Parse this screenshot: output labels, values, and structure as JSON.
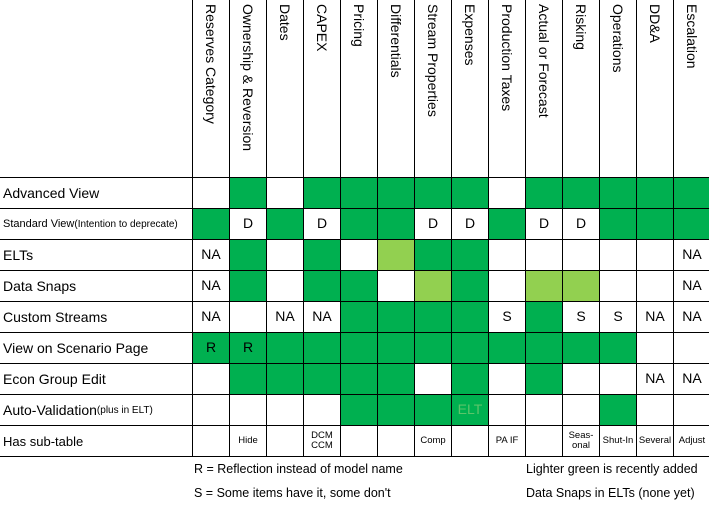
{
  "columns": [
    "Reserves Category",
    "Ownership & Reversion",
    "Dates",
    "CAPEX",
    "Pricing",
    "Differentials",
    "Stream Properties",
    "Expenses",
    "Production Taxes",
    "Actual or Forecast",
    "Risking",
    "Operations",
    "DD&A",
    "Escalation"
  ],
  "rows": [
    {
      "label": "Advanced View",
      "cells": [
        {
          "fill": "#ffffff"
        },
        {
          "fill": "#00b050"
        },
        {
          "fill": "#ffffff"
        },
        {
          "fill": "#00b050"
        },
        {
          "fill": "#00b050"
        },
        {
          "fill": "#00b050"
        },
        {
          "fill": "#00b050"
        },
        {
          "fill": "#00b050"
        },
        {
          "fill": "#ffffff"
        },
        {
          "fill": "#00b050"
        },
        {
          "fill": "#00b050"
        },
        {
          "fill": "#00b050"
        },
        {
          "fill": "#00b050"
        },
        {
          "fill": "#00b050"
        }
      ]
    },
    {
      "label": "Standard View",
      "note": "(Intention to deprecate)",
      "cells": [
        {
          "fill": "#00b050"
        },
        {
          "text": "D",
          "fill": "#ffffff"
        },
        {
          "fill": "#00b050"
        },
        {
          "text": "D",
          "fill": "#ffffff"
        },
        {
          "fill": "#00b050"
        },
        {
          "fill": "#00b050"
        },
        {
          "text": "D",
          "fill": "#ffffff"
        },
        {
          "text": "D",
          "fill": "#ffffff"
        },
        {
          "fill": "#00b050"
        },
        {
          "text": "D",
          "fill": "#ffffff"
        },
        {
          "text": "D",
          "fill": "#ffffff"
        },
        {
          "fill": "#00b050"
        },
        {
          "fill": "#00b050"
        },
        {
          "fill": "#00b050"
        }
      ]
    },
    {
      "label": "ELTs",
      "cells": [
        {
          "text": "NA",
          "fill": "#ffffff"
        },
        {
          "fill": "#00b050"
        },
        {
          "fill": "#ffffff"
        },
        {
          "fill": "#00b050"
        },
        {
          "fill": "#ffffff"
        },
        {
          "fill": "#92d050"
        },
        {
          "fill": "#00b050"
        },
        {
          "fill": "#00b050"
        },
        {
          "fill": "#ffffff"
        },
        {
          "fill": "#ffffff"
        },
        {
          "fill": "#ffffff"
        },
        {
          "fill": "#ffffff"
        },
        {
          "fill": "#ffffff"
        },
        {
          "text": "NA",
          "fill": "#ffffff"
        }
      ]
    },
    {
      "label": "Data Snaps",
      "cells": [
        {
          "text": "NA",
          "fill": "#ffffff"
        },
        {
          "fill": "#00b050"
        },
        {
          "fill": "#ffffff"
        },
        {
          "fill": "#00b050"
        },
        {
          "fill": "#00b050"
        },
        {
          "fill": "#ffffff"
        },
        {
          "fill": "#92d050"
        },
        {
          "fill": "#00b050"
        },
        {
          "fill": "#ffffff"
        },
        {
          "fill": "#92d050"
        },
        {
          "fill": "#92d050"
        },
        {
          "fill": "#ffffff"
        },
        {
          "fill": "#ffffff"
        },
        {
          "text": "NA",
          "fill": "#ffffff"
        }
      ]
    },
    {
      "label": "Custom Streams",
      "cells": [
        {
          "text": "NA",
          "fill": "#ffffff"
        },
        {
          "fill": "#ffffff"
        },
        {
          "text": "NA",
          "fill": "#ffffff"
        },
        {
          "text": "NA",
          "fill": "#ffffff"
        },
        {
          "fill": "#00b050"
        },
        {
          "fill": "#00b050"
        },
        {
          "fill": "#00b050"
        },
        {
          "fill": "#00b050"
        },
        {
          "text": "S",
          "fill": "#ffffff"
        },
        {
          "fill": "#00b050"
        },
        {
          "text": "S",
          "fill": "#ffffff"
        },
        {
          "text": "S",
          "fill": "#ffffff"
        },
        {
          "text": "NA",
          "fill": "#ffffff"
        },
        {
          "text": "NA",
          "fill": "#ffffff"
        }
      ]
    },
    {
      "label": "View on Scenario Page",
      "cells": [
        {
          "text": "R",
          "fill": "#00b050"
        },
        {
          "text": "R",
          "fill": "#00b050"
        },
        {
          "fill": "#00b050"
        },
        {
          "fill": "#00b050"
        },
        {
          "fill": "#00b050"
        },
        {
          "fill": "#00b050"
        },
        {
          "fill": "#00b050"
        },
        {
          "fill": "#00b050"
        },
        {
          "fill": "#00b050"
        },
        {
          "fill": "#00b050"
        },
        {
          "fill": "#00b050"
        },
        {
          "fill": "#00b050"
        },
        {
          "fill": "#ffffff"
        },
        {
          "fill": "#ffffff"
        }
      ]
    },
    {
      "label": "Econ Group Edit",
      "cells": [
        {
          "fill": "#ffffff"
        },
        {
          "fill": "#00b050"
        },
        {
          "fill": "#00b050"
        },
        {
          "fill": "#00b050"
        },
        {
          "fill": "#00b050"
        },
        {
          "fill": "#00b050"
        },
        {
          "fill": "#ffffff"
        },
        {
          "fill": "#00b050"
        },
        {
          "fill": "#ffffff"
        },
        {
          "fill": "#00b050"
        },
        {
          "fill": "#ffffff"
        },
        {
          "fill": "#ffffff"
        },
        {
          "text": "NA",
          "fill": "#ffffff"
        },
        {
          "text": "NA",
          "fill": "#ffffff"
        }
      ]
    },
    {
      "label": "Auto-Validation",
      "note": "(plus in ELT)",
      "cells": [
        {
          "fill": "#ffffff"
        },
        {
          "fill": "#ffffff"
        },
        {
          "fill": "#ffffff"
        },
        {
          "fill": "#ffffff"
        },
        {
          "fill": "#00b050"
        },
        {
          "fill": "#00b050"
        },
        {
          "fill": "#00b050"
        },
        {
          "text": "ELT",
          "fill": "#00b050",
          "color": "#5cc46a"
        },
        {
          "fill": "#ffffff"
        },
        {
          "fill": "#ffffff"
        },
        {
          "fill": "#ffffff"
        },
        {
          "fill": "#00b050"
        },
        {
          "fill": "#ffffff"
        },
        {
          "fill": "#ffffff"
        }
      ]
    },
    {
      "label": "Has sub-table",
      "small": true,
      "cells": [
        {
          "fill": "#ffffff"
        },
        {
          "text": "Hide",
          "fill": "#ffffff"
        },
        {
          "fill": "#ffffff"
        },
        {
          "text": "DCM\nCCM",
          "fill": "#ffffff"
        },
        {
          "fill": "#ffffff"
        },
        {
          "fill": "#ffffff"
        },
        {
          "text": "Comp",
          "fill": "#ffffff"
        },
        {
          "fill": "#ffffff"
        },
        {
          "text": "PA IF",
          "fill": "#ffffff"
        },
        {
          "fill": "#ffffff"
        },
        {
          "text": "Seas-\nonal",
          "fill": "#ffffff"
        },
        {
          "text": "Shut-In",
          "fill": "#ffffff"
        },
        {
          "text": "Several",
          "fill": "#ffffff"
        },
        {
          "text": "Adjust",
          "fill": "#ffffff"
        }
      ]
    }
  ],
  "notes": [
    "R = Reflection instead of model name",
    "S = Some items have it, some don't",
    "Lighter green is recently added",
    "Data Snaps in ELTs (none yet)"
  ]
}
